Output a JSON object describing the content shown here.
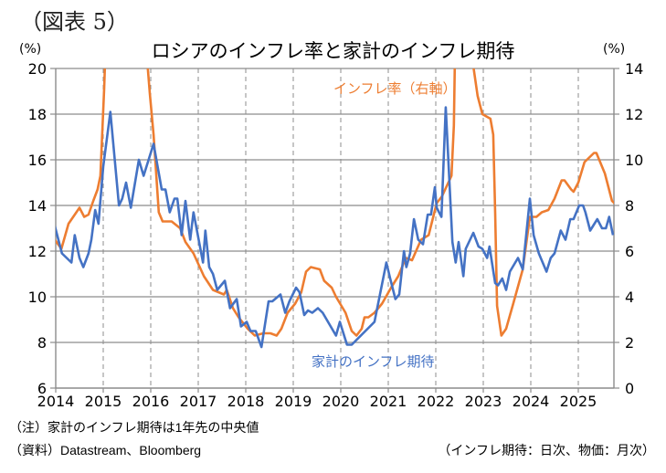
{
  "figure_label": "（図表 5）",
  "notes": {
    "note": "（注）家計のインフレ期待は1年先の中央値",
    "source": "（資料）Datastream、Bloomberg",
    "frequency": "（インフレ期待：日次、物価：月次）"
  },
  "chart_data": {
    "type": "line",
    "title": "ロシアのインフレ率と家計のインフレ期待",
    "xlabel": "",
    "ylabel_left": "(%)",
    "ylabel_right": "(%)",
    "x_ticks": [
      "2014",
      "2015",
      "2016",
      "2017",
      "2018",
      "2019",
      "2020",
      "2021",
      "2022",
      "2023",
      "2024",
      "2025"
    ],
    "xlim": [
      2014,
      2025.8
    ],
    "ylim_left": [
      6,
      20
    ],
    "ylim_right": [
      0,
      14
    ],
    "y_ticks_left": [
      "6",
      "8",
      "10",
      "12",
      "14",
      "16",
      "18",
      "20"
    ],
    "y_ticks_right": [
      "0",
      "2",
      "4",
      "6",
      "8",
      "10",
      "12",
      "14"
    ],
    "grid": true,
    "series": [
      {
        "name": "家計のインフレ期待",
        "axis": "left",
        "color": "#4472C4",
        "label_position": "bottom-center",
        "points": [
          [
            2013.98,
            13.1
          ],
          [
            2014.13,
            11.9
          ],
          [
            2014.33,
            11.5
          ],
          [
            2014.4,
            12.7
          ],
          [
            2014.5,
            11.7
          ],
          [
            2014.58,
            11.3
          ],
          [
            2014.69,
            11.9
          ],
          [
            2014.75,
            12.5
          ],
          [
            2014.83,
            13.8
          ],
          [
            2014.9,
            13.2
          ],
          [
            2015.0,
            15.7
          ],
          [
            2015.15,
            18.1
          ],
          [
            2015.33,
            14.0
          ],
          [
            2015.4,
            14.3
          ],
          [
            2015.48,
            15.0
          ],
          [
            2015.58,
            13.9
          ],
          [
            2015.75,
            16.0
          ],
          [
            2015.85,
            15.3
          ],
          [
            2016.06,
            16.7
          ],
          [
            2016.23,
            14.7
          ],
          [
            2016.31,
            14.7
          ],
          [
            2016.4,
            13.7
          ],
          [
            2016.5,
            14.3
          ],
          [
            2016.56,
            14.3
          ],
          [
            2016.65,
            12.7
          ],
          [
            2016.73,
            14.2
          ],
          [
            2016.83,
            12.5
          ],
          [
            2016.9,
            13.7
          ],
          [
            2017.1,
            11.5
          ],
          [
            2017.15,
            12.9
          ],
          [
            2017.23,
            11.3
          ],
          [
            2017.31,
            11.0
          ],
          [
            2017.4,
            10.3
          ],
          [
            2017.56,
            10.7
          ],
          [
            2017.67,
            9.5
          ],
          [
            2017.81,
            9.9
          ],
          [
            2017.9,
            8.7
          ],
          [
            2018.02,
            8.9
          ],
          [
            2018.1,
            8.5
          ],
          [
            2018.21,
            8.5
          ],
          [
            2018.33,
            7.8
          ],
          [
            2018.48,
            9.8
          ],
          [
            2018.56,
            9.8
          ],
          [
            2018.73,
            10.1
          ],
          [
            2018.83,
            9.3
          ],
          [
            2018.92,
            9.8
          ],
          [
            2019.06,
            10.4
          ],
          [
            2019.13,
            10.2
          ],
          [
            2019.23,
            9.2
          ],
          [
            2019.31,
            9.4
          ],
          [
            2019.4,
            9.3
          ],
          [
            2019.52,
            9.5
          ],
          [
            2019.62,
            9.3
          ],
          [
            2019.9,
            8.3
          ],
          [
            2019.98,
            8.9
          ],
          [
            2020.13,
            7.9
          ],
          [
            2020.23,
            7.9
          ],
          [
            2020.71,
            8.9
          ],
          [
            2020.96,
            11.5
          ],
          [
            2021.04,
            10.8
          ],
          [
            2021.15,
            9.9
          ],
          [
            2021.23,
            10.1
          ],
          [
            2021.33,
            12.0
          ],
          [
            2021.38,
            11.3
          ],
          [
            2021.46,
            11.9
          ],
          [
            2021.54,
            13.4
          ],
          [
            2021.63,
            12.5
          ],
          [
            2021.73,
            12.3
          ],
          [
            2021.83,
            13.6
          ],
          [
            2021.9,
            13.6
          ],
          [
            2021.98,
            14.8
          ],
          [
            2022.02,
            13.9
          ],
          [
            2022.12,
            13.5
          ],
          [
            2022.21,
            18.3
          ],
          [
            2022.35,
            12.4
          ],
          [
            2022.42,
            11.5
          ],
          [
            2022.48,
            12.4
          ],
          [
            2022.58,
            10.9
          ],
          [
            2022.63,
            12.1
          ],
          [
            2022.79,
            12.8
          ],
          [
            2022.9,
            12.2
          ],
          [
            2022.98,
            12.1
          ],
          [
            2023.08,
            11.7
          ],
          [
            2023.13,
            12.2
          ],
          [
            2023.25,
            10.6
          ],
          [
            2023.31,
            10.5
          ],
          [
            2023.4,
            10.8
          ],
          [
            2023.48,
            10.3
          ],
          [
            2023.56,
            11.1
          ],
          [
            2023.73,
            11.7
          ],
          [
            2023.83,
            11.2
          ],
          [
            2023.98,
            14.3
          ],
          [
            2024.06,
            12.7
          ],
          [
            2024.17,
            11.9
          ],
          [
            2024.33,
            11.1
          ],
          [
            2024.42,
            11.7
          ],
          [
            2024.5,
            11.9
          ],
          [
            2024.63,
            12.9
          ],
          [
            2024.73,
            12.5
          ],
          [
            2024.83,
            13.4
          ],
          [
            2024.9,
            13.4
          ],
          [
            2025.02,
            14.0
          ],
          [
            2025.1,
            14.0
          ],
          [
            2025.15,
            13.7
          ],
          [
            2025.25,
            12.9
          ],
          [
            2025.4,
            13.4
          ],
          [
            2025.5,
            13.0
          ],
          [
            2025.58,
            13.0
          ],
          [
            2025.65,
            13.5
          ],
          [
            2025.73,
            12.7
          ]
        ]
      },
      {
        "name": "インフレ率（右軸）",
        "axis": "right",
        "color": "#ED7D31",
        "label_position": "top-right",
        "points": [
          [
            2013.98,
            6.5
          ],
          [
            2014.12,
            6.1
          ],
          [
            2014.27,
            7.2
          ],
          [
            2014.5,
            7.9
          ],
          [
            2014.6,
            7.5
          ],
          [
            2014.69,
            7.6
          ],
          [
            2014.79,
            8.2
          ],
          [
            2014.88,
            8.7
          ],
          [
            2014.94,
            9.3
          ],
          [
            2015.02,
            13.1
          ],
          [
            2015.08,
            16.9
          ],
          [
            2015.5,
            15.8
          ],
          [
            2015.92,
            14.5
          ],
          [
            2015.98,
            12.9
          ],
          [
            2016.06,
            11.1
          ],
          [
            2016.17,
            7.7
          ],
          [
            2016.25,
            7.3
          ],
          [
            2016.44,
            7.3
          ],
          [
            2016.62,
            7.0
          ],
          [
            2016.73,
            6.4
          ],
          [
            2016.9,
            5.9
          ],
          [
            2017.12,
            4.9
          ],
          [
            2017.31,
            4.3
          ],
          [
            2017.54,
            4.1
          ],
          [
            2017.6,
            4.3
          ],
          [
            2017.73,
            3.5
          ],
          [
            2017.85,
            3.1
          ],
          [
            2018.04,
            2.6
          ],
          [
            2018.19,
            2.3
          ],
          [
            2018.37,
            2.4
          ],
          [
            2018.52,
            2.4
          ],
          [
            2018.65,
            2.3
          ],
          [
            2018.75,
            2.6
          ],
          [
            2018.88,
            3.3
          ],
          [
            2019.04,
            3.7
          ],
          [
            2019.17,
            4.2
          ],
          [
            2019.27,
            5.1
          ],
          [
            2019.37,
            5.3
          ],
          [
            2019.56,
            5.2
          ],
          [
            2019.65,
            4.7
          ],
          [
            2019.81,
            4.4
          ],
          [
            2019.9,
            4.0
          ],
          [
            2020.1,
            3.3
          ],
          [
            2020.23,
            2.5
          ],
          [
            2020.33,
            2.3
          ],
          [
            2020.44,
            2.6
          ],
          [
            2020.5,
            3.1
          ],
          [
            2020.58,
            3.1
          ],
          [
            2020.71,
            3.3
          ],
          [
            2020.87,
            3.7
          ],
          [
            2021.06,
            4.4
          ],
          [
            2021.21,
            4.9
          ],
          [
            2021.37,
            5.7
          ],
          [
            2021.5,
            5.6
          ],
          [
            2021.69,
            6.5
          ],
          [
            2021.85,
            6.7
          ],
          [
            2022.02,
            8.1
          ],
          [
            2022.13,
            8.4
          ],
          [
            2022.33,
            9.3
          ],
          [
            2022.38,
            11.5
          ],
          [
            2022.42,
            16.7
          ],
          [
            2022.5,
            17.8
          ],
          [
            2022.7,
            15.1
          ],
          [
            2022.79,
            14.1
          ],
          [
            2022.88,
            12.8
          ],
          [
            2022.98,
            12.0
          ],
          [
            2023.15,
            11.8
          ],
          [
            2023.21,
            11.1
          ],
          [
            2023.25,
            7.7
          ],
          [
            2023.29,
            3.6
          ],
          [
            2023.38,
            2.3
          ],
          [
            2023.48,
            2.6
          ],
          [
            2023.63,
            3.7
          ],
          [
            2023.83,
            5.2
          ],
          [
            2023.98,
            7.5
          ],
          [
            2024.12,
            7.5
          ],
          [
            2024.23,
            7.7
          ],
          [
            2024.37,
            7.8
          ],
          [
            2024.5,
            8.3
          ],
          [
            2024.65,
            9.1
          ],
          [
            2024.71,
            9.1
          ],
          [
            2024.85,
            8.7
          ],
          [
            2024.9,
            8.6
          ],
          [
            2025.0,
            9.0
          ],
          [
            2025.13,
            9.9
          ],
          [
            2025.33,
            10.3
          ],
          [
            2025.38,
            10.3
          ],
          [
            2025.56,
            9.4
          ],
          [
            2025.71,
            8.2
          ],
          [
            2025.81,
            8.0
          ]
        ]
      }
    ]
  }
}
